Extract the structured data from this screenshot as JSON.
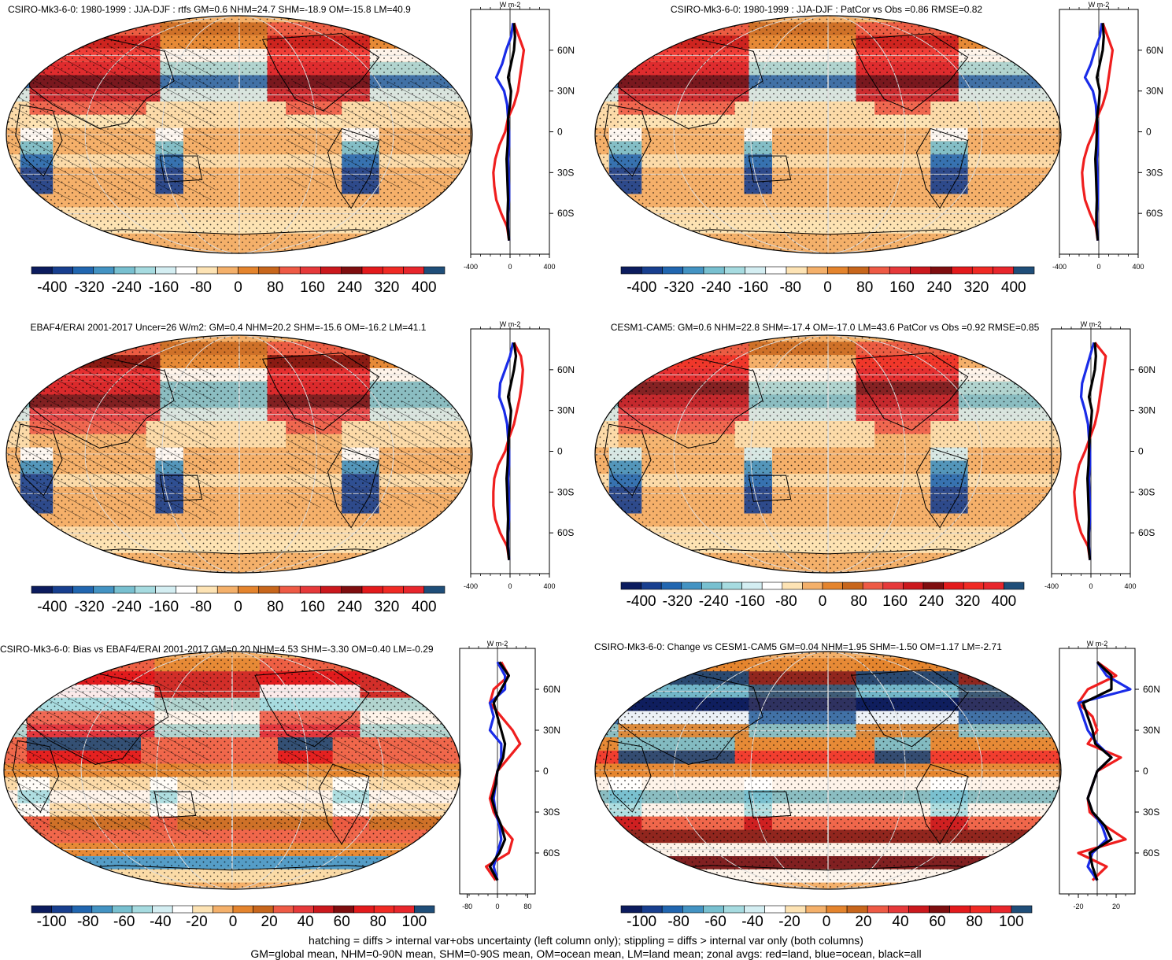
{
  "colors": {
    "levels": [
      "#0c1c5e",
      "#183f8f",
      "#2166b0",
      "#4393c3",
      "#78c0d0",
      "#a6dbe0",
      "#d4eef2",
      "#ffffff",
      "#fde3b4",
      "#f4b06a",
      "#e4842d",
      "#c8661c",
      "#ee5a45",
      "#e6393a",
      "#cb181d",
      "#7f0e10",
      "#e31a1c",
      "#f02a24",
      "#e8262c",
      "#1f4e79"
    ],
    "land_line": "#ef1e1e",
    "ocean_line": "#1a2ce8",
    "all_line": "#000000"
  },
  "caption": {
    "line1": "hatching = diffs > internal var+obs uncertainty (left column only); stippling = diffs > internal var only (both columns)",
    "line2": "GM=global mean, NHM=0-90N mean, SHM=0-90S mean, OM=ocean mean, LM=land mean; zonal avgs: red=land, blue=ocean, black=all"
  },
  "chart_data": [
    {
      "type": "heatmap",
      "title": "CSIRO-Mk3-6-0: 1980-1999 : JJA-DJF : rtfs GM=0.6 NHM=24.7 SHM=-18.9 OM=-15.8 LM=40.9",
      "colorbar_labels": [
        "-400",
        "-320",
        "-240",
        "-160",
        "-80",
        "0",
        "80",
        "160",
        "240",
        "320",
        "400"
      ],
      "profile_unit": "W m-2",
      "profile_xticks": [
        "-400",
        "0",
        "400"
      ],
      "profile_xlim": [
        -400,
        400
      ],
      "lat_ticks": [
        "60N",
        "30N",
        "0",
        "30S",
        "60S"
      ],
      "lat": [
        80,
        70,
        60,
        50,
        40,
        30,
        20,
        10,
        0,
        -10,
        -20,
        -30,
        -40,
        -50,
        -60,
        -70,
        -80
      ],
      "series": [
        {
          "name": "land",
          "values": [
            40,
            90,
            140,
            120,
            100,
            80,
            40,
            -20,
            -50,
            -110,
            -150,
            -170,
            -160,
            -140,
            -90,
            -30,
            -10
          ]
        },
        {
          "name": "ocean",
          "values": [
            30,
            10,
            -40,
            -80,
            -140,
            -60,
            -30,
            -20,
            -10,
            -10,
            -20,
            -15,
            -10,
            -10,
            -20,
            -20,
            -10
          ]
        },
        {
          "name": "all",
          "values": [
            40,
            50,
            40,
            10,
            -20,
            10,
            0,
            -20,
            -20,
            -25,
            -35,
            -30,
            -25,
            -20,
            -25,
            -25,
            -10
          ]
        }
      ],
      "hatching": true,
      "stippling": true
    },
    {
      "type": "heatmap",
      "title": "CSIRO-Mk3-6-0: 1980-1999 : JJA-DJF : PatCor vs Obs =0.86 RMSE=0.82",
      "colorbar_labels": [
        "-400",
        "-320",
        "-240",
        "-160",
        "-80",
        "0",
        "80",
        "160",
        "240",
        "320",
        "400"
      ],
      "profile_unit": "W m-2",
      "profile_xticks": [
        "-400",
        "0",
        "400"
      ],
      "profile_xlim": [
        -400,
        400
      ],
      "lat_ticks": [
        "60N",
        "30N",
        "0",
        "30S",
        "60S"
      ],
      "lat": [
        80,
        70,
        60,
        50,
        40,
        30,
        20,
        10,
        0,
        -10,
        -20,
        -30,
        -40,
        -50,
        -60,
        -70,
        -80
      ],
      "series": [
        {
          "name": "land",
          "values": [
            40,
            90,
            140,
            120,
            100,
            80,
            40,
            -20,
            -50,
            -110,
            -150,
            -170,
            -160,
            -140,
            -90,
            -30,
            -10
          ]
        },
        {
          "name": "ocean",
          "values": [
            30,
            10,
            -40,
            -80,
            -140,
            -60,
            -30,
            -20,
            -10,
            -10,
            -20,
            -15,
            -10,
            -10,
            -20,
            -20,
            -10
          ]
        },
        {
          "name": "all",
          "values": [
            40,
            50,
            40,
            10,
            -20,
            10,
            0,
            -20,
            -20,
            -25,
            -35,
            -30,
            -25,
            -20,
            -25,
            -25,
            -10
          ]
        }
      ],
      "hatching": false,
      "stippling": true
    },
    {
      "type": "heatmap",
      "title": "EBAF4/ERAI 2001-2017 Uncer=26 W/m2: GM=0.4 NHM=20.2 SHM=-15.6 OM=-16.2 LM=41.1",
      "colorbar_labels": [
        "-400",
        "-320",
        "-240",
        "-160",
        "-80",
        "0",
        "80",
        "160",
        "240",
        "320",
        "400"
      ],
      "profile_unit": "W m-2",
      "profile_xticks": [
        "-400",
        "0",
        "400"
      ],
      "profile_xlim": [
        -400,
        400
      ],
      "lat_ticks": [
        "60N",
        "30N",
        "0",
        "30S",
        "60S"
      ],
      "lat": [
        80,
        70,
        60,
        50,
        40,
        30,
        20,
        10,
        0,
        -10,
        -20,
        -30,
        -40,
        -50,
        -60,
        -70,
        -80
      ],
      "series": [
        {
          "name": "land",
          "values": [
            40,
            110,
            130,
            120,
            100,
            70,
            40,
            -10,
            -50,
            -120,
            -160,
            -170,
            -170,
            -150,
            -100,
            -30,
            -10
          ]
        },
        {
          "name": "ocean",
          "values": [
            30,
            0,
            -50,
            -100,
            -110,
            -60,
            -30,
            -20,
            -10,
            -10,
            -20,
            -15,
            -10,
            -10,
            -20,
            -20,
            -10
          ]
        },
        {
          "name": "all",
          "values": [
            40,
            60,
            40,
            10,
            -20,
            10,
            0,
            -15,
            -20,
            -25,
            -35,
            -30,
            -25,
            -20,
            -25,
            -25,
            -10
          ]
        }
      ],
      "hatching": true,
      "stippling": true
    },
    {
      "type": "heatmap",
      "title": "CESM1-CAM5: GM=0.6 NHM=22.8 SHM=-17.4 OM=-17.0 LM=43.6 PatCor vs Obs =0.92 RMSE=0.85",
      "colorbar_labels": [
        "-400",
        "-320",
        "-240",
        "-160",
        "-80",
        "0",
        "80",
        "160",
        "240",
        "320",
        "400"
      ],
      "profile_unit": "W m-2",
      "profile_xticks": [
        "-400",
        "0",
        "400"
      ],
      "profile_xlim": [
        -400,
        400
      ],
      "lat_ticks": [
        "60N",
        "30N",
        "0",
        "30S",
        "60S"
      ],
      "lat": [
        80,
        70,
        60,
        50,
        40,
        30,
        20,
        10,
        0,
        -10,
        -20,
        -30,
        -40,
        -50,
        -60,
        -70,
        -80
      ],
      "series": [
        {
          "name": "land",
          "values": [
            40,
            150,
            130,
            110,
            90,
            70,
            40,
            -10,
            -60,
            -120,
            -150,
            -170,
            -160,
            -140,
            -100,
            -30,
            -10
          ]
        },
        {
          "name": "ocean",
          "values": [
            30,
            -10,
            -50,
            -90,
            -100,
            -60,
            -30,
            -20,
            -10,
            -10,
            -20,
            -15,
            -10,
            -10,
            -20,
            -20,
            -10
          ]
        },
        {
          "name": "all",
          "values": [
            40,
            50,
            40,
            10,
            -20,
            10,
            0,
            -15,
            -20,
            -25,
            -35,
            -30,
            -25,
            -20,
            -25,
            -25,
            -10
          ]
        }
      ],
      "hatching": false,
      "stippling": true
    },
    {
      "type": "heatmap",
      "title": "CSIRO-Mk3-6-0: Bias vs EBAF4/ERAI 2001-2017 GM=0.20 NHM=4.53 SHM=-3.30 OM=0.40 LM=-0.29",
      "colorbar_labels": [
        "-100",
        "-80",
        "-60",
        "-40",
        "-20",
        "0",
        "20",
        "40",
        "60",
        "80",
        "100"
      ],
      "profile_unit": "W m-2",
      "profile_xticks": [
        "-80",
        "0",
        "80"
      ],
      "profile_xlim": [
        -100,
        100
      ],
      "lat_ticks": [
        "60N",
        "30N",
        "0",
        "30S",
        "60S"
      ],
      "lat": [
        80,
        70,
        60,
        50,
        40,
        30,
        20,
        10,
        0,
        -10,
        -20,
        -30,
        -40,
        -50,
        -60,
        -70,
        -80
      ],
      "series": [
        {
          "name": "land",
          "values": [
            10,
            30,
            -10,
            -20,
            10,
            40,
            60,
            30,
            0,
            -10,
            -20,
            -10,
            10,
            40,
            30,
            -30,
            -5
          ]
        },
        {
          "name": "ocean",
          "values": [
            0,
            20,
            20,
            -20,
            -10,
            -20,
            10,
            10,
            0,
            -5,
            -10,
            -5,
            5,
            10,
            0,
            -10,
            0
          ]
        },
        {
          "name": "all",
          "values": [
            5,
            30,
            10,
            -10,
            0,
            10,
            20,
            15,
            0,
            -5,
            -15,
            -5,
            10,
            20,
            5,
            -20,
            0
          ]
        }
      ],
      "hatching": true,
      "stippling": true
    },
    {
      "type": "heatmap",
      "title": "CSIRO-Mk3-6-0: Change vs CESM1-CAM5 GM=0.04 NHM=1.95 SHM=-1.50 OM=1.17 LM=-2.71",
      "colorbar_labels": [
        "-100",
        "-80",
        "-60",
        "-40",
        "-20",
        "0",
        "20",
        "40",
        "60",
        "80",
        "100"
      ],
      "profile_unit": "W m-2",
      "profile_xticks": [
        "-20",
        "20"
      ],
      "profile_xlim": [
        -40,
        40
      ],
      "lat_ticks": [
        "60N",
        "30N",
        "0",
        "30S",
        "60S"
      ],
      "lat": [
        80,
        70,
        60,
        50,
        40,
        30,
        20,
        10,
        0,
        -10,
        -20,
        -30,
        -40,
        -50,
        -60,
        -70,
        -80
      ],
      "series": [
        {
          "name": "land",
          "values": [
            0,
            20,
            -10,
            -20,
            -5,
            0,
            -10,
            25,
            0,
            -5,
            -10,
            -8,
            8,
            30,
            -20,
            10,
            -5
          ]
        },
        {
          "name": "ocean",
          "values": [
            0,
            10,
            35,
            -20,
            -15,
            -10,
            0,
            15,
            0,
            -5,
            -10,
            -5,
            5,
            10,
            -5,
            -10,
            0
          ]
        },
        {
          "name": "all",
          "values": [
            0,
            15,
            15,
            -15,
            -10,
            -5,
            -2,
            15,
            0,
            -5,
            -10,
            -5,
            8,
            15,
            -8,
            -5,
            0
          ]
        }
      ],
      "hatching": false,
      "stippling": true
    }
  ]
}
